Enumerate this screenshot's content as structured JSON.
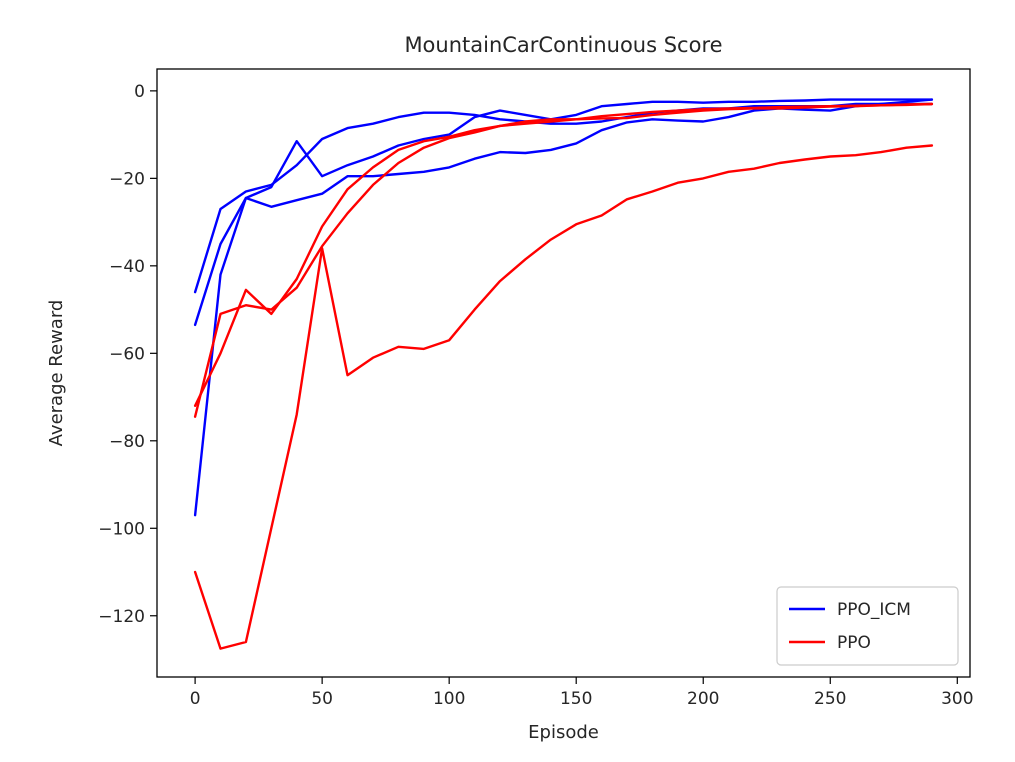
{
  "chart_data": {
    "type": "line",
    "title": "MountainCarContinuous Score",
    "xlabel": "Episode",
    "ylabel": "Average Reward",
    "xlim": [
      -15,
      305
    ],
    "ylim": [
      -134,
      5
    ],
    "xticks": [
      0,
      50,
      100,
      150,
      200,
      250,
      300
    ],
    "yticks": [
      0,
      -20,
      -40,
      -60,
      -80,
      -100,
      -120
    ],
    "xtick_labels": [
      "0",
      "50",
      "100",
      "150",
      "200",
      "250",
      "300"
    ],
    "ytick_labels": [
      "0",
      "−20",
      "−40",
      "−60",
      "−80",
      "−100",
      "−120"
    ],
    "grid": false,
    "legend_position": "lower-right",
    "legend": [
      {
        "label": "PPO_ICM",
        "color": "#0000ff"
      },
      {
        "label": "PPO",
        "color": "#ff0000"
      }
    ],
    "series": [
      {
        "group": "PPO_ICM",
        "color": "#0000ff",
        "x": [
          0,
          10,
          20,
          30,
          40,
          50,
          60,
          70,
          80,
          90,
          100,
          110,
          120,
          130,
          140,
          150,
          160,
          170,
          180,
          190,
          200,
          210,
          220,
          230,
          240,
          250,
          260,
          270,
          280,
          290
        ],
        "y": [
          -97,
          -42,
          -24.5,
          -26.5,
          -25,
          -23.5,
          -19.5,
          -19.5,
          -19,
          -18.5,
          -17.5,
          -15.5,
          -14,
          -14.2,
          -13.5,
          -12,
          -9,
          -7.2,
          -6.5,
          -6.8,
          -7,
          -6,
          -4.5,
          -4,
          -4.3,
          -4.5,
          -3.5,
          -3,
          -2.5,
          -2
        ]
      },
      {
        "group": "PPO_ICM",
        "color": "#0000ff",
        "x": [
          0,
          10,
          20,
          30,
          40,
          50,
          60,
          70,
          80,
          90,
          100,
          110,
          120,
          130,
          140,
          150,
          160,
          170,
          180,
          190,
          200,
          210,
          220,
          230,
          240,
          250,
          260,
          270,
          280,
          290
        ],
        "y": [
          -53.5,
          -35,
          -24.5,
          -22,
          -11.5,
          -19.5,
          -17,
          -15,
          -12.5,
          -11,
          -10,
          -6,
          -4.5,
          -5.5,
          -6.5,
          -5.5,
          -3.5,
          -3,
          -2.5,
          -2.5,
          -2.7,
          -2.5,
          -2.5,
          -2.3,
          -2.2,
          -2,
          -2,
          -2,
          -2,
          -2
        ]
      },
      {
        "group": "PPO_ICM",
        "color": "#0000ff",
        "x": [
          0,
          10,
          20,
          30,
          40,
          50,
          60,
          70,
          80,
          90,
          100,
          110,
          120,
          130,
          140,
          150,
          160,
          170,
          180,
          190,
          200,
          210,
          220,
          230,
          240,
          250,
          260,
          270,
          280,
          290
        ],
        "y": [
          -46,
          -27,
          -23,
          -21.5,
          -17,
          -11,
          -8.5,
          -7.5,
          -6,
          -5,
          -5,
          -5.5,
          -6.5,
          -7,
          -7.5,
          -7.5,
          -7,
          -6,
          -5,
          -4.5,
          -4,
          -4,
          -3.5,
          -3.5,
          -3.5,
          -3.5,
          -3,
          -3,
          -3,
          -3
        ]
      },
      {
        "group": "PPO",
        "color": "#ff0000",
        "x": [
          0,
          10,
          20,
          30,
          40,
          50,
          60,
          70,
          80,
          90,
          100,
          110,
          120,
          130,
          140,
          150,
          160,
          170,
          180,
          190,
          200,
          210,
          220,
          230,
          240,
          250,
          260,
          270,
          280,
          290
        ],
        "y": [
          -110,
          -127.5,
          -126,
          -100,
          -74,
          -36,
          -65,
          -61,
          -58.5,
          -59,
          -57,
          -50,
          -43.5,
          -38.5,
          -34,
          -30.5,
          -28.5,
          -24.8,
          -23,
          -21,
          -20,
          -18.5,
          -17.8,
          -16.5,
          -15.7,
          -15,
          -14.7,
          -14,
          -13,
          -12.5
        ]
      },
      {
        "group": "PPO",
        "color": "#ff0000",
        "x": [
          0,
          10,
          20,
          30,
          40,
          50,
          60,
          70,
          80,
          90,
          100,
          110,
          120,
          130,
          140,
          150,
          160,
          170,
          180,
          190,
          200,
          210,
          220,
          230,
          240,
          250,
          260,
          270,
          280,
          290
        ],
        "y": [
          -74.5,
          -51,
          -49,
          -50,
          -45,
          -35.5,
          -28,
          -21.5,
          -16.5,
          -13,
          -10.8,
          -9.5,
          -8,
          -7.5,
          -7,
          -6.5,
          -5.8,
          -5.3,
          -4.8,
          -4.5,
          -4.2,
          -4,
          -3.9,
          -3.7,
          -3.6,
          -3.5,
          -3.4,
          -3.3,
          -3.1,
          -3
        ]
      },
      {
        "group": "PPO",
        "color": "#ff0000",
        "x": [
          0,
          10,
          20,
          30,
          40,
          50,
          60,
          70,
          80,
          90,
          100,
          110,
          120,
          130,
          140,
          150,
          160,
          170,
          180,
          190,
          200,
          210,
          220,
          230,
          240,
          250,
          260,
          270,
          280,
          290
        ],
        "y": [
          -72,
          -60,
          -45.5,
          -51,
          -43,
          -31,
          -22.5,
          -17.5,
          -13.5,
          -11.5,
          -10.5,
          -9,
          -8,
          -7,
          -6.5,
          -6.5,
          -6.3,
          -6.2,
          -5.5,
          -5,
          -4.5,
          -4.2,
          -4,
          -4,
          -3.8,
          -3.6,
          -3.5,
          -3.3,
          -3.2,
          -3
        ]
      }
    ]
  }
}
